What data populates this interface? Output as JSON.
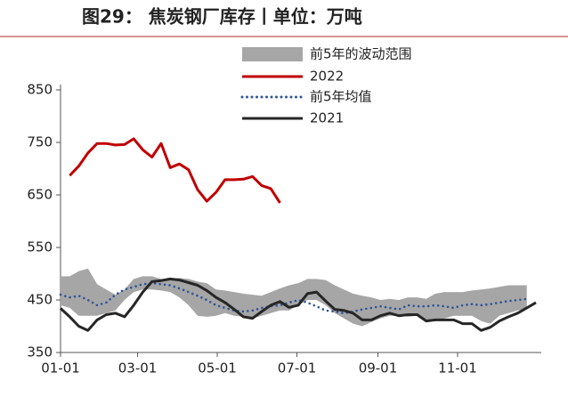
{
  "chart_data": {
    "type": "line",
    "title": "图29：  焦炭钢厂库存丨单位：万吨",
    "x": [
      "01-01",
      "01-08",
      "01-15",
      "01-22",
      "01-29",
      "02-05",
      "02-12",
      "02-19",
      "02-26",
      "03-05",
      "03-12",
      "03-19",
      "03-26",
      "04-02",
      "04-09",
      "04-16",
      "04-23",
      "04-30",
      "05-07",
      "05-14",
      "05-21",
      "05-28",
      "06-04",
      "06-11",
      "06-18",
      "06-25",
      "07-02",
      "07-09",
      "07-16",
      "07-23",
      "07-30",
      "08-06",
      "08-13",
      "08-20",
      "08-27",
      "09-03",
      "09-10",
      "09-17",
      "09-24",
      "10-01",
      "10-08",
      "10-15",
      "10-22",
      "10-29",
      "11-05",
      "11-12",
      "11-19",
      "11-26",
      "12-03",
      "12-10",
      "12-17",
      "12-24",
      "12-31"
    ],
    "xlim": [
      "01-01",
      "12-31"
    ],
    "xticks": [
      "01-01",
      "03-01",
      "05-01",
      "07-01",
      "09-01",
      "11-01"
    ],
    "ylim": [
      350,
      850
    ],
    "yticks": [
      350,
      450,
      550,
      650,
      750,
      850
    ],
    "legend": "top-center",
    "series": [
      {
        "name": "前5年的波动范围",
        "kind": "band",
        "color": "#a6a6a6",
        "upper": [
          495,
          495,
          505,
          510,
          480,
          470,
          460,
          470,
          490,
          495,
          495,
          490,
          490,
          492,
          490,
          485,
          482,
          470,
          468,
          465,
          462,
          460,
          458,
          465,
          472,
          478,
          482,
          490,
          490,
          488,
          478,
          470,
          462,
          458,
          455,
          450,
          452,
          450,
          455,
          455,
          452,
          462,
          465,
          465,
          465,
          468,
          470,
          472,
          475,
          478,
          478,
          478,
          null
        ],
        "lower": [
          440,
          435,
          420,
          420,
          420,
          425,
          430,
          450,
          465,
          470,
          470,
          468,
          465,
          455,
          440,
          420,
          418,
          420,
          425,
          420,
          418,
          415,
          420,
          425,
          430,
          430,
          440,
          450,
          450,
          440,
          425,
          415,
          405,
          400,
          408,
          415,
          420,
          420,
          418,
          420,
          410,
          412,
          415,
          420,
          420,
          420,
          410,
          405,
          420,
          425,
          430,
          432,
          null
        ]
      },
      {
        "name": "2022",
        "kind": "solid",
        "color": "#c00000",
        "values": [
          null,
          687,
          705,
          730,
          748,
          748,
          745,
          746,
          757,
          736,
          722,
          748,
          702,
          709,
          698,
          660,
          638,
          655,
          679,
          679,
          680,
          685,
          668,
          662,
          635,
          null,
          null,
          null,
          null,
          null,
          null,
          null,
          null,
          null,
          null,
          null,
          null,
          null,
          null,
          null,
          null,
          null,
          null,
          null,
          null,
          null,
          null,
          null,
          null,
          null,
          null,
          null,
          null
        ]
      },
      {
        "name": "前5年均值",
        "kind": "dotted",
        "color": "#2e5597",
        "values": [
          460,
          455,
          458,
          450,
          440,
          445,
          460,
          470,
          475,
          480,
          482,
          480,
          478,
          472,
          465,
          458,
          450,
          440,
          435,
          430,
          428,
          430,
          435,
          438,
          440,
          445,
          450,
          445,
          438,
          430,
          428,
          425,
          428,
          432,
          435,
          438,
          435,
          432,
          440,
          438,
          438,
          440,
          438,
          435,
          440,
          442,
          440,
          442,
          445,
          448,
          450,
          452,
          null
        ]
      },
      {
        "name": "2021",
        "kind": "solid",
        "color": "#262626",
        "values": [
          434,
          418,
          400,
          392,
          412,
          422,
          425,
          418,
          440,
          465,
          485,
          487,
          490,
          488,
          483,
          478,
          468,
          455,
          445,
          432,
          418,
          415,
          428,
          440,
          447,
          436,
          440,
          462,
          465,
          448,
          432,
          430,
          425,
          412,
          412,
          420,
          425,
          420,
          422,
          422,
          410,
          412,
          412,
          412,
          405,
          405,
          392,
          398,
          410,
          418,
          425,
          435,
          445
        ]
      }
    ]
  }
}
